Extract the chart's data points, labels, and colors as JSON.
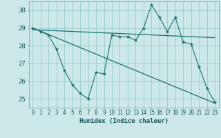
{
  "xlabel": "Humidex (Indice chaleur)",
  "background_color": "#cce8e8",
  "grid_color": "#99cccc",
  "line_color": "#1a7070",
  "xlim": [
    -0.5,
    23.5
  ],
  "ylim": [
    24.5,
    30.5
  ],
  "yticks": [
    25,
    26,
    27,
    28,
    29,
    30
  ],
  "xticks": [
    0,
    1,
    2,
    3,
    4,
    5,
    6,
    7,
    8,
    9,
    10,
    11,
    12,
    13,
    14,
    15,
    16,
    17,
    18,
    19,
    20,
    21,
    22,
    23
  ],
  "series1_x": [
    0,
    1,
    2,
    3,
    4,
    5,
    6,
    7,
    8,
    9,
    10,
    11,
    12,
    13,
    14,
    15,
    16,
    17,
    18,
    19,
    20,
    21,
    22,
    23
  ],
  "series1_y": [
    29.0,
    28.8,
    28.6,
    27.8,
    26.6,
    25.8,
    25.3,
    25.0,
    26.5,
    26.4,
    28.6,
    28.5,
    28.5,
    28.3,
    29.0,
    30.3,
    29.6,
    28.8,
    29.6,
    28.2,
    28.1,
    26.8,
    25.6,
    24.8
  ],
  "series2_x": [
    0,
    23
  ],
  "series2_y": [
    28.9,
    28.45
  ],
  "series3_x": [
    0,
    23
  ],
  "series3_y": [
    29.0,
    24.75
  ],
  "tick_fontsize": 5.5,
  "xlabel_fontsize": 6.5
}
